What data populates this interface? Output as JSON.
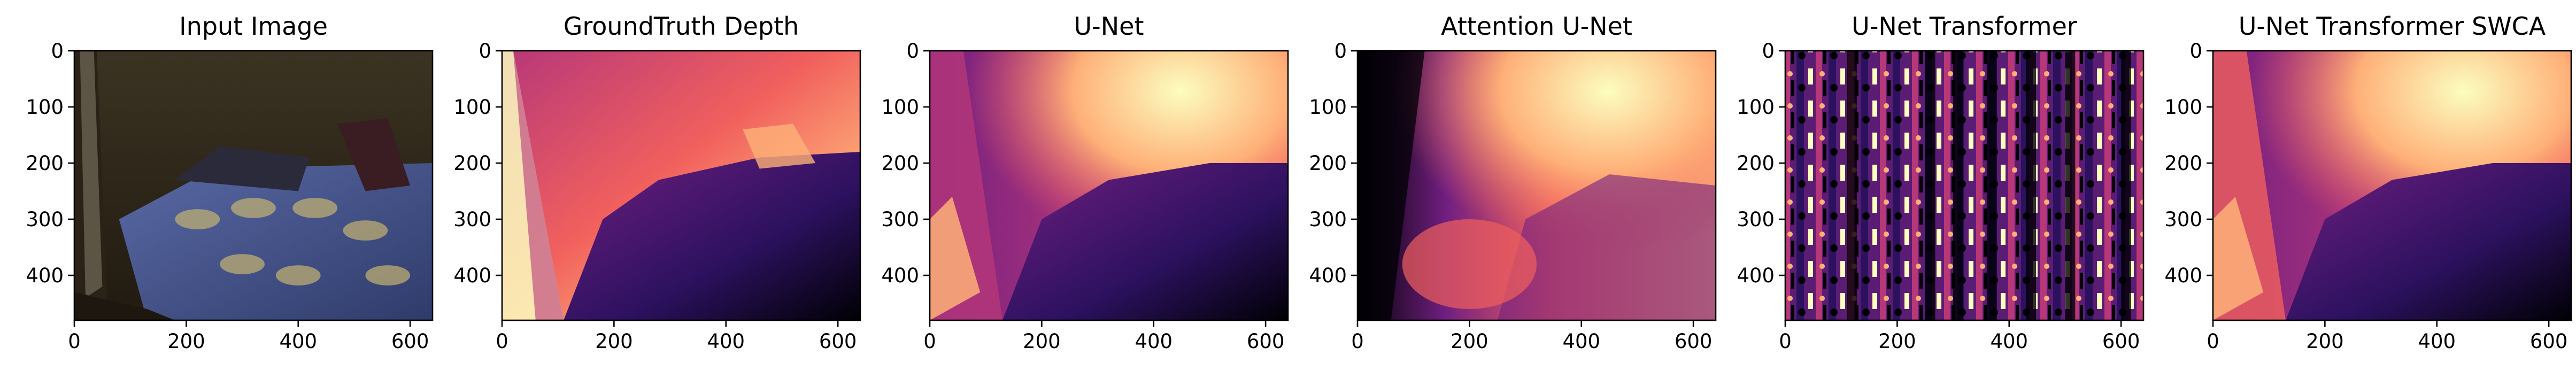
{
  "figure": {
    "panels": [
      {
        "title": "Input Image",
        "kind": "photo"
      },
      {
        "title": "GroundTruth Depth",
        "kind": "depth-gt"
      },
      {
        "title": "U-Net",
        "kind": "depth-unet"
      },
      {
        "title": "Attention U-Net",
        "kind": "depth-attn"
      },
      {
        "title": "U-Net Transformer",
        "kind": "depth-noisy"
      },
      {
        "title": "U-Net Transformer SWCA",
        "kind": "depth-swca"
      }
    ],
    "x_ticks": [
      "0",
      "200",
      "400",
      "600"
    ],
    "y_ticks": [
      "0",
      "100",
      "200",
      "300",
      "400"
    ],
    "colormap": [
      "#000004",
      "#2c115f",
      "#721f81",
      "#b73779",
      "#f1605d",
      "#feb078",
      "#fcfdbf"
    ],
    "photo_colors": {
      "wall": "#3a3020",
      "bed": "#4b5b94",
      "floor": "#1d1710"
    }
  }
}
